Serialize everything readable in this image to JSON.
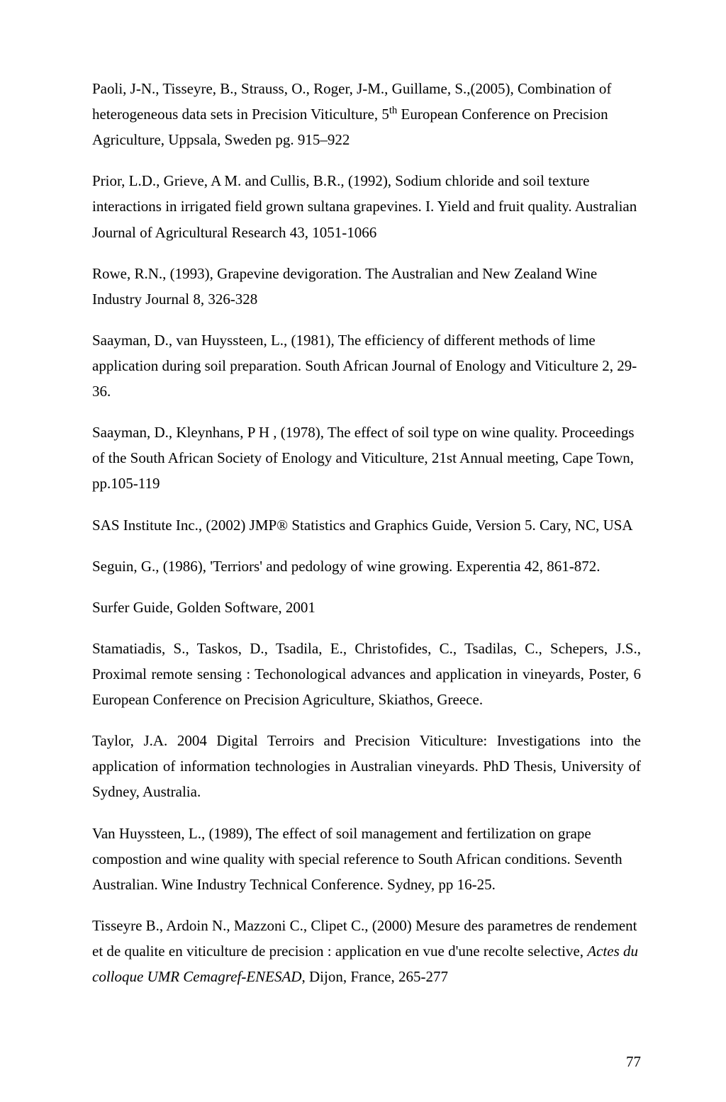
{
  "typography": {
    "font_family": "Times New Roman",
    "body_fontsize_pt": 12,
    "line_height": 1.72,
    "text_color": "#000000",
    "background_color": "#ffffff"
  },
  "refs": [
    {
      "html": "Paoli, J-N., Tisseyre, B., Strauss, O., Roger, J-M., Guillame, S.,(2005), Combination of heterogeneous data sets in Precision Viticulture, 5<sup>th</sup> European Conference on Precision Agriculture, Uppsala, Sweden pg. 915–922",
      "justify": false
    },
    {
      "html": "Prior, L.D., Grieve, A M. and Cullis, B.R., (1992), Sodium chloride and soil texture interactions in irrigated field grown sultana grapevines. I. Yield and fruit quality. Australian Journal of Agricultural Research 43, 1051-1066",
      "justify": false
    },
    {
      "html": "Rowe, R.N., (1993), Grapevine devigoration. The Australian and New Zealand Wine Industry Journal 8, 326-328",
      "justify": false
    },
    {
      "html": "Saayman, D., van Huyssteen, L., (1981), The efficiency of different methods of lime application during soil preparation. South African Journal of Enology and Viticulture 2, 29-36.",
      "justify": false
    },
    {
      "html": "Saayman, D., Kleynhans, P H , (1978), The effect of soil type on wine quality. Proceedings of the South African Society of Enology and Viticulture, 21st Annual meeting, Cape Town, pp.105-119",
      "justify": false
    },
    {
      "html": "SAS Institute Inc., (2002) JMP® Statistics and Graphics Guide, Version 5. Cary, NC, USA",
      "justify": false
    },
    {
      "html": "Seguin, G., (1986), 'Terriors' and pedology of wine growing. Experentia 42, 861-872.",
      "justify": false
    },
    {
      "html": "Surfer Guide, Golden Software, 2001",
      "justify": false
    },
    {
      "html": "Stamatiadis, S., Taskos, D., Tsadila, E., Christofides, C., Tsadilas, C., Schepers, J.S., Proximal remote sensing : Techonological advances and application in vineyards, Poster, 6 European Conference on Precision Agriculture, Skiathos, Greece.",
      "justify": true
    },
    {
      "html": "Taylor, J.A. 2004 Digital Terroirs and Precision Viticulture: Investigations into the application of information technologies in Australian vineyards. PhD Thesis, University of Sydney, Australia.",
      "justify": true
    },
    {
      "html": "Van Huyssteen, L., (1989), The effect of soil management and fertilization on grape compostion and wine quality with special reference to South African conditions. Seventh Australian. Wine Industry Technical Conference. Sydney, pp 16-25.",
      "justify": false
    },
    {
      "html": "Tisseyre B., Ardoin N., Mazzoni C., Clipet C., (2000) Mesure des parametres de rendement et de qualite en viticulture de precision : application en vue d'une recolte selective, <em>Actes du colloque UMR Cemagref-ENESAD</em>, Dijon, France, 265-277",
      "justify": false
    }
  ],
  "page_number": "77"
}
